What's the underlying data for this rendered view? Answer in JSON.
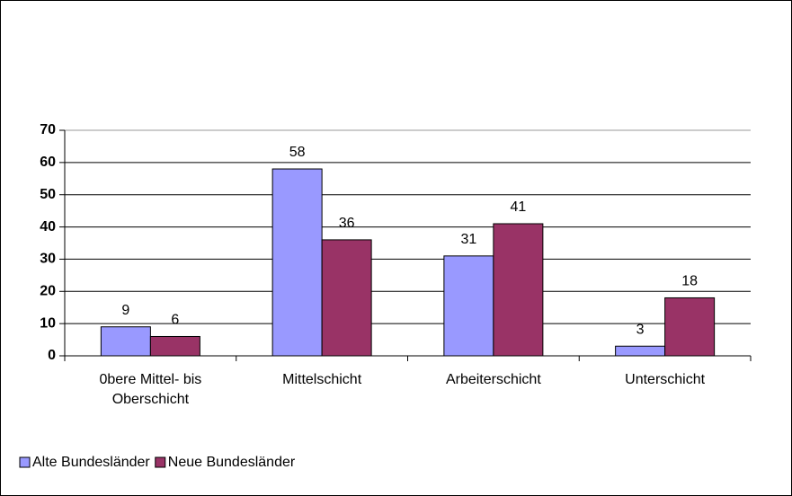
{
  "chart_data": {
    "type": "bar",
    "categories": [
      "0bere Mittel- bis Oberschicht",
      "Mittelschicht",
      "Arbeiterschicht",
      "Unterschicht"
    ],
    "series": [
      {
        "name": "Alte Bundesländer",
        "color": "#9999ff",
        "values": [
          9,
          58,
          31,
          3
        ]
      },
      {
        "name": "Neue Bundesländer",
        "color": "#993366",
        "values": [
          6,
          36,
          41,
          18
        ]
      }
    ],
    "ylim": [
      0,
      70
    ],
    "yticks": [
      0,
      10,
      20,
      30,
      40,
      50,
      60,
      70
    ],
    "grid": true,
    "legend": "bottom-left"
  }
}
